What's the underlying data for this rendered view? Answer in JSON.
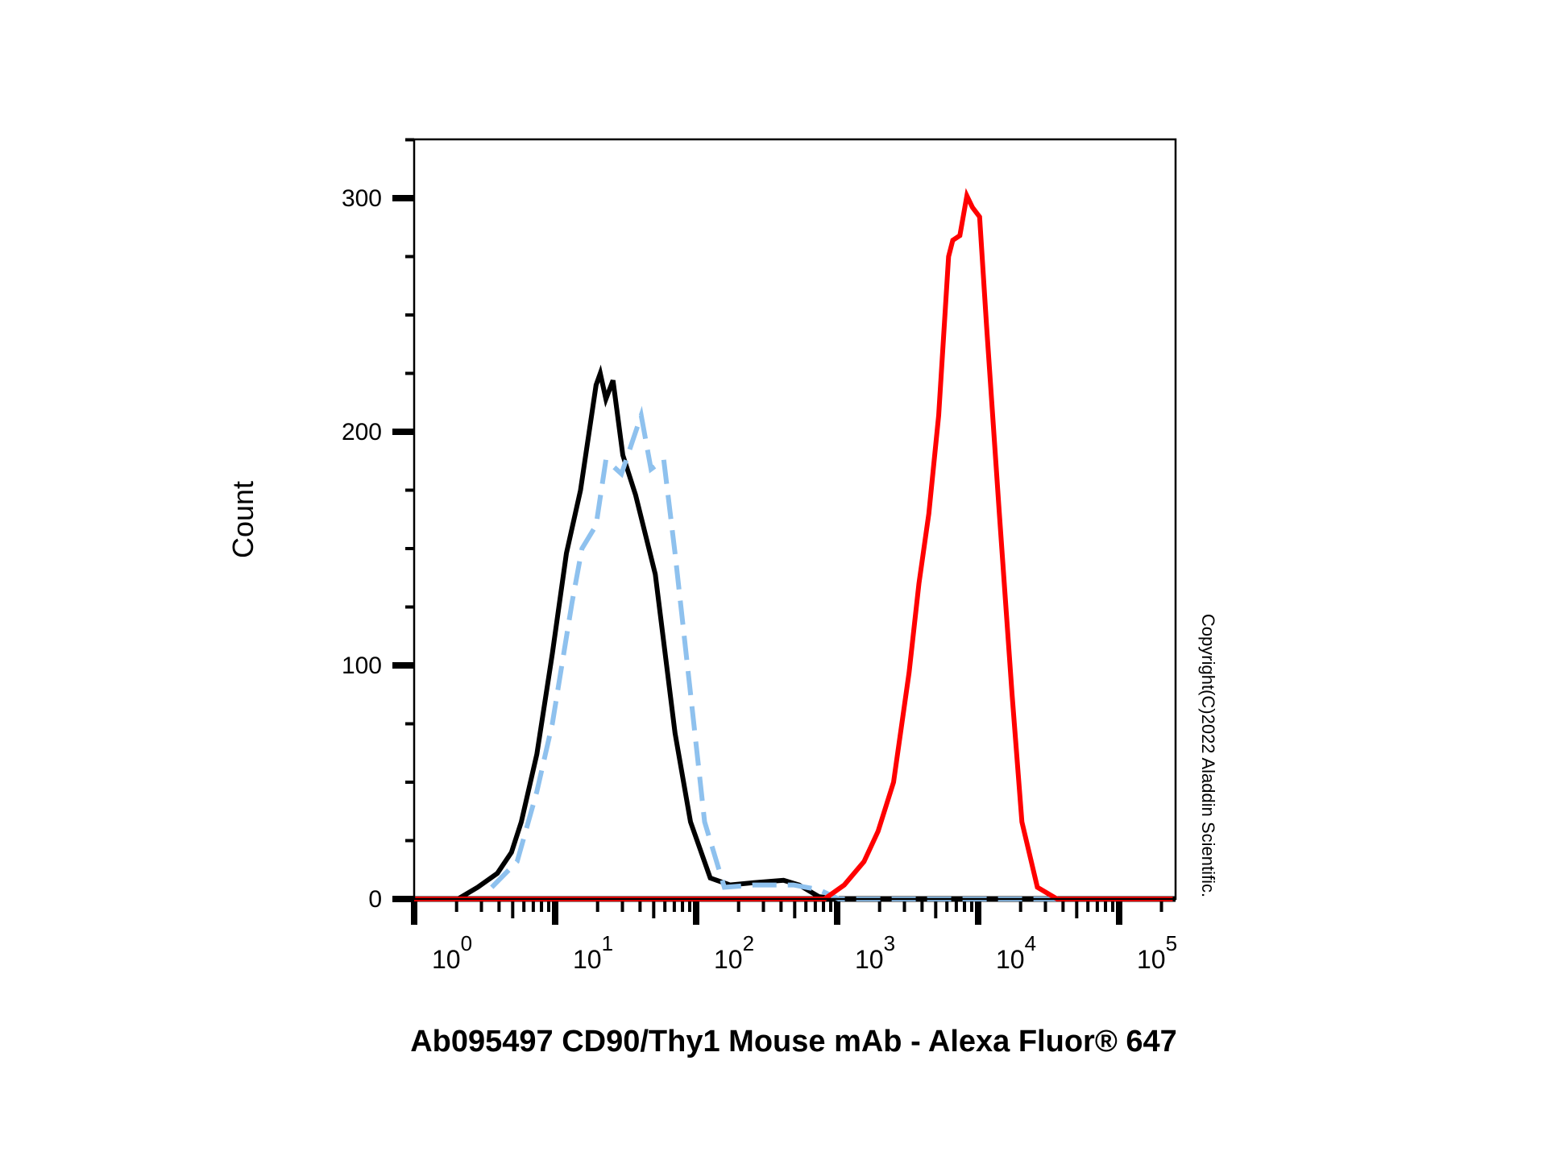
{
  "chart_data": {
    "type": "line",
    "title": "",
    "xlabel": "Ab095497 CD90/Thy1 Mouse mAb - Alexa Fluor® 647",
    "ylabel": "Count",
    "xscale": "log",
    "xlim_log10": [
      0,
      5.38
    ],
    "ylim": [
      0,
      325
    ],
    "x_tick_labels": [
      {
        "base": "10",
        "exp": "0",
        "log10": 0
      },
      {
        "base": "10",
        "exp": "1",
        "log10": 1
      },
      {
        "base": "10",
        "exp": "2",
        "log10": 2
      },
      {
        "base": "10",
        "exp": "3",
        "log10": 3
      },
      {
        "base": "10",
        "exp": "4",
        "log10": 4
      },
      {
        "base": "10",
        "exp": "5",
        "log10": 5
      }
    ],
    "y_ticks": [
      0,
      100,
      200,
      300
    ],
    "y_tick_labels": [
      "0",
      "100",
      "200",
      "300"
    ],
    "grid": false,
    "series": [
      {
        "name": "black",
        "color": "#000000",
        "dashed": false,
        "log10_x": [
          0.31,
          0.45,
          0.59,
          0.69,
          0.76,
          0.87,
          0.98,
          1.08,
          1.18,
          1.29,
          1.32,
          1.36,
          1.41,
          1.48,
          1.57,
          1.71,
          1.85,
          1.96,
          2.1,
          2.24,
          2.41,
          2.62,
          2.73,
          2.87,
          3.01,
          5.38
        ],
        "y": [
          0,
          5,
          11,
          20,
          33,
          62,
          105,
          148,
          175,
          220,
          225,
          214,
          222,
          190,
          173,
          139,
          71,
          33,
          9,
          6,
          7,
          8,
          6,
          1,
          0,
          0
        ]
      },
      {
        "name": "blue-dashed",
        "color": "#8ec1ee",
        "dashed": true,
        "log10_x": [
          0.55,
          0.73,
          0.87,
          0.98,
          1.12,
          1.19,
          1.29,
          1.36,
          1.47,
          1.61,
          1.68,
          1.77,
          1.85,
          1.96,
          2.06,
          2.2,
          2.41,
          2.69,
          2.87,
          3.01,
          5.38
        ],
        "y": [
          5,
          16,
          46,
          75,
          127,
          150,
          160,
          188,
          182,
          207,
          184,
          188,
          148,
          88,
          33,
          5,
          6,
          6,
          4,
          0,
          0
        ]
      },
      {
        "name": "red",
        "color": "#ff0000",
        "dashed": false,
        "log10_x": [
          0,
          2.91,
          3.05,
          3.19,
          3.29,
          3.4,
          3.51,
          3.58,
          3.65,
          3.72,
          3.79,
          3.82,
          3.87,
          3.92,
          3.96,
          4.01,
          4.06,
          4.15,
          4.24,
          4.31,
          4.42,
          4.56,
          5.38
        ],
        "y": [
          0,
          0,
          6,
          16,
          29,
          50,
          97,
          135,
          165,
          207,
          275,
          282,
          284,
          301,
          296,
          292,
          245,
          165,
          88,
          33,
          5,
          0,
          0
        ]
      }
    ],
    "legend": "none"
  },
  "watermark": "Copyright(C)2022 Aladdin Scientific."
}
